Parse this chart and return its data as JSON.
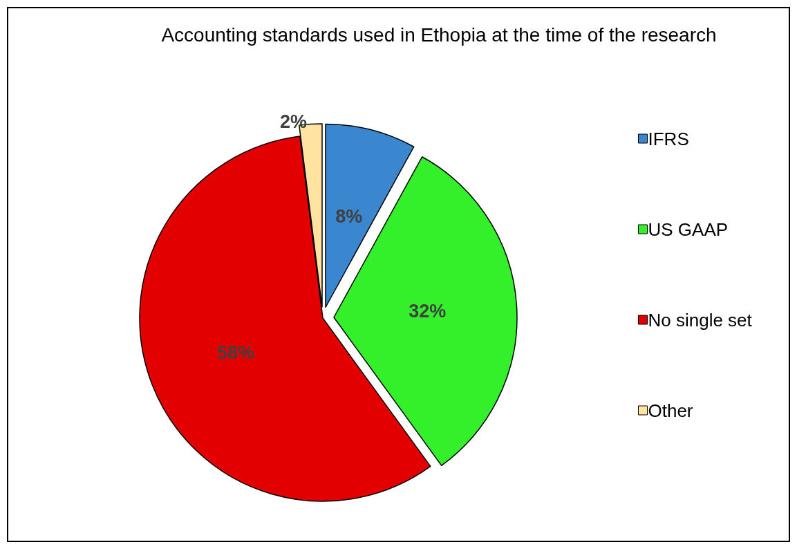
{
  "chart_data": {
    "type": "pie",
    "title": "Accounting standards used in Ethopia at the time of the research",
    "categories": [
      "IFRS",
      "US GAAP",
      "No single set",
      "Other"
    ],
    "values": [
      8,
      32,
      58,
      2
    ],
    "colors": [
      "#3a87d0",
      "#33f02a",
      "#e30000",
      "#ffe3a0"
    ],
    "value_labels": [
      "8%",
      "32%",
      "58%",
      "2%"
    ],
    "legend": "right"
  }
}
